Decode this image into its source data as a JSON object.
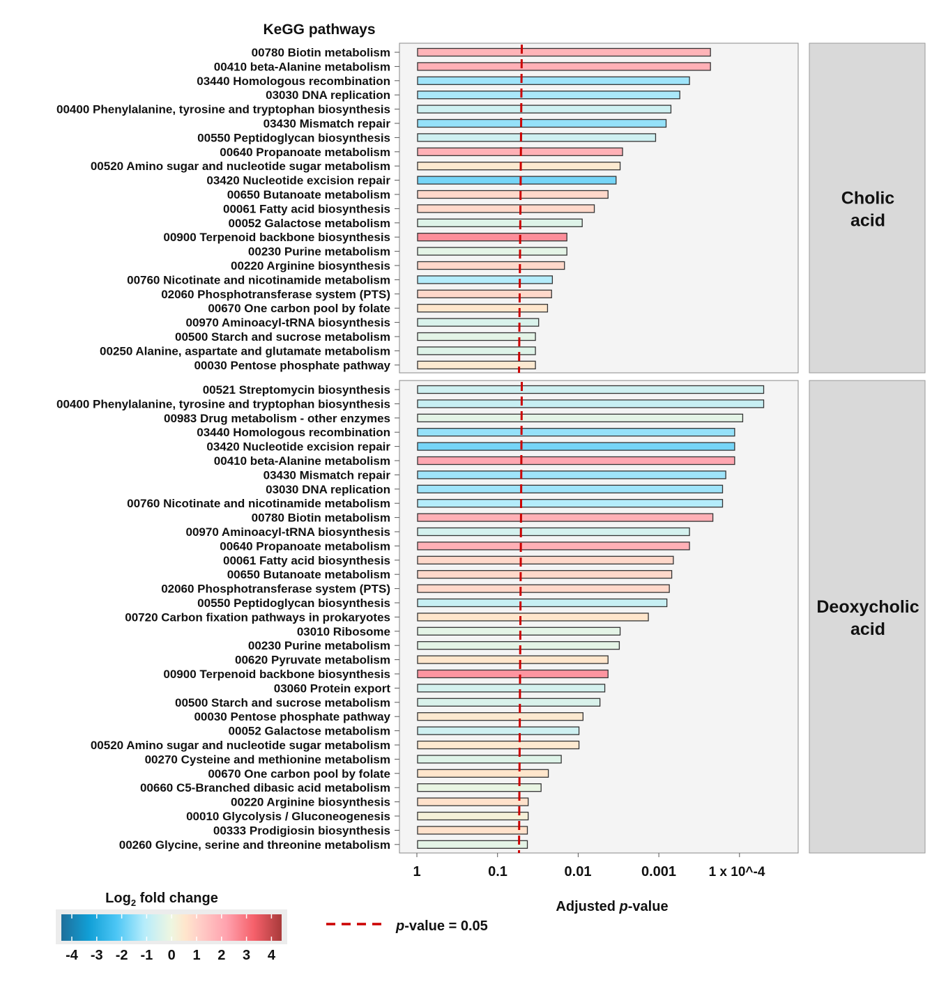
{
  "chart_data": {
    "type": "bar",
    "orientation": "horizontal",
    "title": "KeGG pathways",
    "xlabel": "Adjusted p-value",
    "xscale": "log (reversed, -log10)",
    "x_ticks": [
      "1",
      "0.1",
      "0.01",
      "0.001",
      "1 x 10^-4"
    ],
    "x_tick_values": [
      1,
      0.1,
      0.01,
      0.001,
      0.0001
    ],
    "threshold": {
      "label": "p-value = 0.05",
      "value": 0.05,
      "color": "#cc0000",
      "style": "dashed"
    },
    "color_legend": {
      "title": "Log2 fold change",
      "ticks": [
        "-4",
        "-3",
        "-2",
        "-1",
        "0",
        "1",
        "2",
        "3",
        "4"
      ],
      "range": [
        -4,
        4
      ],
      "stops": [
        {
          "v": -4,
          "c": "#1f6f9a"
        },
        {
          "v": -3,
          "c": "#119fd6"
        },
        {
          "v": -2,
          "c": "#4cc6f5"
        },
        {
          "v": -1,
          "c": "#b4ecfb"
        },
        {
          "v": -0.5,
          "c": "#d4f1ee"
        },
        {
          "v": 0,
          "c": "#eef6e0"
        },
        {
          "v": 0.5,
          "c": "#ffe6cc"
        },
        {
          "v": 1,
          "c": "#ffcfc8"
        },
        {
          "v": 2,
          "c": "#ffa2ae"
        },
        {
          "v": 3,
          "c": "#f5606a"
        },
        {
          "v": 4,
          "c": "#a83a3a"
        }
      ]
    },
    "panels": [
      {
        "facet": "Cholic acid",
        "categories": [
          "00780 Biotin metabolism",
          "00410 beta-Alanine metabolism",
          "03440 Homologous recombination",
          "03030 DNA replication",
          "00400 Phenylalanine, tyrosine and tryptophan biosynthesis",
          "03430 Mismatch repair",
          "00550 Peptidoglycan biosynthesis",
          "00640 Propanoate metabolism",
          "00520 Amino sugar and nucleotide sugar metabolism",
          "03420 Nucleotide excision repair",
          "00650 Butanoate metabolism",
          "00061 Fatty acid biosynthesis",
          "00052 Galactose metabolism",
          "00900 Terpenoid backbone biosynthesis",
          "00230 Purine metabolism",
          "00220 Arginine biosynthesis",
          "00760 Nicotinate and nicotinamide metabolism",
          "02060 Phosphotransferase system (PTS)",
          "00670 One carbon pool by folate",
          "00970 Aminoacyl-tRNA biosynthesis",
          "00500 Starch and sucrose metabolism",
          "00250 Alanine, aspartate and glutamate metabolism",
          "00030 Pentose phosphate pathway"
        ],
        "neg_log10_p": [
          3.64,
          3.64,
          3.38,
          3.26,
          3.15,
          3.09,
          2.96,
          2.55,
          2.52,
          2.47,
          2.37,
          2.2,
          2.05,
          1.86,
          1.86,
          1.83,
          1.68,
          1.67,
          1.62,
          1.51,
          1.47,
          1.47,
          1.47
        ],
        "log2fc": [
          1.6,
          1.7,
          -1.2,
          -1.1,
          -0.6,
          -1.3,
          -0.6,
          1.7,
          0.4,
          -1.6,
          0.8,
          0.8,
          -0.3,
          2.3,
          -0.2,
          0.8,
          -1.0,
          0.8,
          0.5,
          -0.4,
          -0.2,
          -0.3,
          0.4
        ]
      },
      {
        "facet": "Deoxycholic acid",
        "categories": [
          "00521 Streptomycin biosynthesis",
          "00400 Phenylalanine, tyrosine and tryptophan biosynthesis",
          "00983 Drug metabolism - other enzymes",
          "03440 Homologous recombination",
          "03420 Nucleotide excision repair",
          "00410 beta-Alanine metabolism",
          "03430 Mismatch repair",
          "03030 DNA replication",
          "00760 Nicotinate and nicotinamide metabolism",
          "00780 Biotin metabolism",
          "00970 Aminoacyl-tRNA biosynthesis",
          "00640 Propanoate metabolism",
          "00061 Fatty acid biosynthesis",
          "00650 Butanoate metabolism",
          "02060 Phosphotransferase system (PTS)",
          "00550 Peptidoglycan biosynthesis",
          "00720 Carbon fixation pathways in prokaryotes",
          "03010 Ribosome",
          "00230 Purine metabolism",
          "00620 Pyruvate metabolism",
          "00900 Terpenoid backbone biosynthesis",
          "03060 Protein export",
          "00500 Starch and sucrose metabolism",
          "00030 Pentose phosphate pathway",
          "00052 Galactose metabolism",
          "00520 Amino sugar and nucleotide sugar metabolism",
          "00270 Cysteine and methionine metabolism",
          "00670 One carbon pool by folate",
          "00660 C5-Branched dibasic acid metabolism",
          "00220 Arginine biosynthesis",
          "00010 Glycolysis / Gluconeogenesis",
          "00333 Prodigiosin biosynthesis",
          "00260 Glycine, serine and threonine metabolism"
        ],
        "neg_log10_p": [
          4.3,
          4.3,
          4.04,
          3.94,
          3.94,
          3.94,
          3.83,
          3.79,
          3.79,
          3.67,
          3.38,
          3.38,
          3.18,
          3.16,
          3.13,
          3.1,
          2.87,
          2.52,
          2.51,
          2.37,
          2.37,
          2.33,
          2.27,
          2.06,
          2.01,
          2.01,
          1.79,
          1.63,
          1.54,
          1.38,
          1.38,
          1.37,
          1.37
        ],
        "log2fc": [
          -0.6,
          -0.7,
          -0.2,
          -1.3,
          -1.6,
          1.9,
          -1.2,
          -1.2,
          -1.0,
          1.7,
          -0.5,
          1.7,
          0.8,
          0.8,
          0.8,
          -0.7,
          0.5,
          -0.2,
          -0.2,
          0.5,
          2.2,
          -0.5,
          -0.4,
          0.4,
          -0.6,
          0.4,
          -0.3,
          0.5,
          -0.1,
          0.6,
          0.2,
          0.6,
          -0.2
        ]
      }
    ]
  }
}
